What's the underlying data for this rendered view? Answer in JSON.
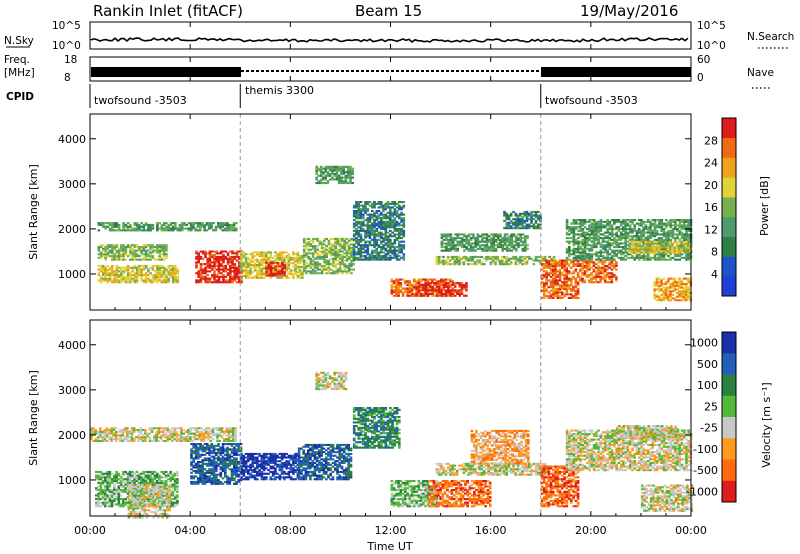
{
  "header": {
    "title": "Rankin Inlet (fitACF)",
    "beam": "Beam 15",
    "date": "19/May/2016"
  },
  "panels": {
    "nsky": {
      "label": "N.Sky",
      "ticks": [
        "10^5",
        "10^0"
      ]
    },
    "nsearch": {
      "label": "N.Search",
      "ticks": [
        "10^5",
        "10^0"
      ]
    },
    "freq": {
      "label_line1": "Freq.",
      "label_line2": "[MHz]",
      "ticks": [
        "18",
        "8"
      ]
    },
    "nave": {
      "label": "Nave",
      "ticks": [
        "60",
        "0"
      ]
    },
    "cpid": {
      "label": "CPID",
      "modes": [
        {
          "name": "twofsound -3503",
          "start": 0
        },
        {
          "name": "themis 3300",
          "start": 6
        },
        {
          "name": "twofsound -3503",
          "start": 18
        }
      ],
      "boundaries": [
        6,
        18
      ]
    }
  },
  "x_axis": {
    "label": "Time UT",
    "tick_labels": [
      "00:00",
      "04:00",
      "08:00",
      "12:00",
      "16:00",
      "20:00",
      "00:00"
    ],
    "tick_hours": [
      0,
      4,
      8,
      12,
      16,
      20,
      24
    ]
  },
  "colors": {
    "power": [
      "#1f3fd6",
      "#1f54c8",
      "#2f7f49",
      "#4f9a6c",
      "#74b04b",
      "#e2d23a",
      "#f0a21a",
      "#f16a13",
      "#dd1c1c"
    ],
    "velocity": [
      "#1b2fa8",
      "#2160b8",
      "#2a8040",
      "#52b83a",
      "#c8c8c8",
      "#ff9a1e",
      "#ff6a10",
      "#dd1c1c"
    ]
  },
  "chart_data": [
    {
      "type": "heatmap",
      "panel": "power",
      "ylabel": "Slant Range [km]",
      "xlabel": "",
      "xlim": [
        0,
        24
      ],
      "ylim": [
        200,
        4550
      ],
      "y_ticks": [
        1000,
        2000,
        3000,
        4000
      ],
      "colorbar": {
        "label": "Power [dB]",
        "range": [
          0,
          32
        ],
        "ticks": [
          4,
          8,
          12,
          16,
          20,
          24,
          28
        ]
      },
      "regions": [
        {
          "t": [
            0.3,
            5.8
          ],
          "r": [
            1950,
            2150
          ],
          "level": 3
        },
        {
          "t": [
            0.3,
            3.0
          ],
          "r": [
            1300,
            1650
          ],
          "level": 4
        },
        {
          "t": [
            0.3,
            3.5
          ],
          "r": [
            800,
            1200
          ],
          "level": 5
        },
        {
          "t": [
            4.2,
            6.0
          ],
          "r": [
            800,
            1500
          ],
          "level": 8
        },
        {
          "t": [
            6.0,
            8.5
          ],
          "r": [
            900,
            1500
          ],
          "level": 5
        },
        {
          "t": [
            7.0,
            7.8
          ],
          "r": [
            950,
            1250
          ],
          "level": 8
        },
        {
          "t": [
            8.5,
            10.5
          ],
          "r": [
            1000,
            1800
          ],
          "level": 4
        },
        {
          "t": [
            9.0,
            10.5
          ],
          "r": [
            3000,
            3400
          ],
          "level": 3
        },
        {
          "t": [
            10.5,
            12.5
          ],
          "r": [
            1300,
            2600
          ],
          "level": 2
        },
        {
          "t": [
            12.0,
            14.5
          ],
          "r": [
            500,
            900
          ],
          "level": 7
        },
        {
          "t": [
            13.0,
            15.0
          ],
          "r": [
            500,
            800
          ],
          "level": 8
        },
        {
          "t": [
            13.8,
            18.5
          ],
          "r": [
            1200,
            1400
          ],
          "level": 4
        },
        {
          "t": [
            14.0,
            17.5
          ],
          "r": [
            1500,
            1900
          ],
          "level": 3
        },
        {
          "t": [
            16.5,
            18.0
          ],
          "r": [
            2000,
            2400
          ],
          "level": 2
        },
        {
          "t": [
            18.0,
            21.0
          ],
          "r": [
            800,
            1300
          ],
          "level": 7
        },
        {
          "t": [
            18.0,
            19.5
          ],
          "r": [
            450,
            800
          ],
          "level": 7
        },
        {
          "t": [
            19.0,
            24.0
          ],
          "r": [
            1300,
            2200
          ],
          "level": 3
        },
        {
          "t": [
            21.5,
            24.0
          ],
          "r": [
            1450,
            1700
          ],
          "level": 5
        },
        {
          "t": [
            22.5,
            24.0
          ],
          "r": [
            400,
            900
          ],
          "level": 6
        }
      ]
    },
    {
      "type": "heatmap",
      "panel": "velocity",
      "ylabel": "Slant Range [km]",
      "xlabel": "Time UT",
      "xlim": [
        0,
        24
      ],
      "ylim": [
        200,
        4550
      ],
      "y_ticks": [
        1000,
        2000,
        3000,
        4000
      ],
      "colorbar": {
        "label": "Velocity [m s⁻¹]",
        "ticks": [
          "1000",
          "500",
          "100",
          "25",
          "-25",
          "-100",
          "-500",
          "-1000"
        ]
      },
      "regions": [
        {
          "t": [
            0.0,
            5.8
          ],
          "r": [
            1850,
            2150
          ],
          "level": 4
        },
        {
          "t": [
            0.2,
            3.5
          ],
          "r": [
            400,
            1200
          ],
          "level": 3
        },
        {
          "t": [
            1.5,
            3.2
          ],
          "r": [
            150,
            900
          ],
          "level": 4
        },
        {
          "t": [
            4.0,
            6.0
          ],
          "r": [
            900,
            1800
          ],
          "level": 1
        },
        {
          "t": [
            6.0,
            8.3
          ],
          "r": [
            1000,
            1600
          ],
          "level": 0
        },
        {
          "t": [
            8.3,
            10.4
          ],
          "r": [
            1000,
            1800
          ],
          "level": 1
        },
        {
          "t": [
            9.0,
            10.2
          ],
          "r": [
            3000,
            3400
          ],
          "level": 4
        },
        {
          "t": [
            10.5,
            12.3
          ],
          "r": [
            1700,
            2600
          ],
          "level": 2
        },
        {
          "t": [
            12.0,
            13.8
          ],
          "r": [
            400,
            1000
          ],
          "level": 3
        },
        {
          "t": [
            13.5,
            16.0
          ],
          "r": [
            400,
            1000
          ],
          "level": 6
        },
        {
          "t": [
            13.8,
            18.2
          ],
          "r": [
            1100,
            1350
          ],
          "level": 4
        },
        {
          "t": [
            15.2,
            17.5
          ],
          "r": [
            1350,
            2100
          ],
          "level": 5
        },
        {
          "t": [
            18.0,
            19.5
          ],
          "r": [
            400,
            1300
          ],
          "level": 6
        },
        {
          "t": [
            19.0,
            24.0
          ],
          "r": [
            1200,
            2100
          ],
          "level": 4
        },
        {
          "t": [
            21.0,
            23.5
          ],
          "r": [
            1900,
            2200
          ],
          "level": 4
        },
        {
          "t": [
            22.0,
            24.0
          ],
          "r": [
            300,
            900
          ],
          "level": 4
        }
      ]
    }
  ]
}
